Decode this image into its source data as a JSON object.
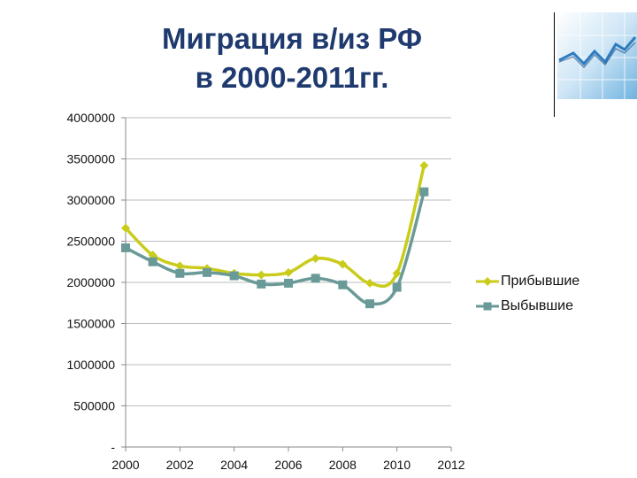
{
  "title": {
    "line1": "Миграция в/из РФ",
    "line2": "в 2000-2011гг."
  },
  "colors": {
    "arrivals": "#c9cc1a",
    "departures": "#6a9a98",
    "title": "#1f3a6e",
    "grid": "#bdbdbd"
  },
  "logo": {
    "icon": "chart-trend-icon"
  },
  "chart_data": {
    "type": "line",
    "title": "Миграция в/из РФ в 2000-2011гг.",
    "xlabel": "",
    "ylabel": "",
    "xlim": [
      2000,
      2012
    ],
    "ylim": [
      0,
      4000000
    ],
    "x_ticks": [
      "2000",
      "2002",
      "2004",
      "2006",
      "2008",
      "2010",
      "2012"
    ],
    "y_ticks": [
      "-",
      "500000",
      "1000000",
      "1500000",
      "2000000",
      "2500000",
      "3000000",
      "3500000",
      "4000000"
    ],
    "grid": true,
    "legend_position": "right",
    "smooth": true,
    "x": [
      2000,
      2001,
      2002,
      2003,
      2004,
      2005,
      2006,
      2007,
      2008,
      2009,
      2010,
      2011
    ],
    "series": [
      {
        "name": "Прибывшие",
        "marker": "diamond",
        "values": [
          2660000,
          2330000,
          2200000,
          2170000,
          2110000,
          2090000,
          2120000,
          2290000,
          2220000,
          1990000,
          2110000,
          3420000
        ]
      },
      {
        "name": "Выбывшие",
        "marker": "square",
        "values": [
          2420000,
          2250000,
          2110000,
          2120000,
          2080000,
          1980000,
          1990000,
          2050000,
          1970000,
          1740000,
          1940000,
          3100000
        ]
      }
    ]
  }
}
